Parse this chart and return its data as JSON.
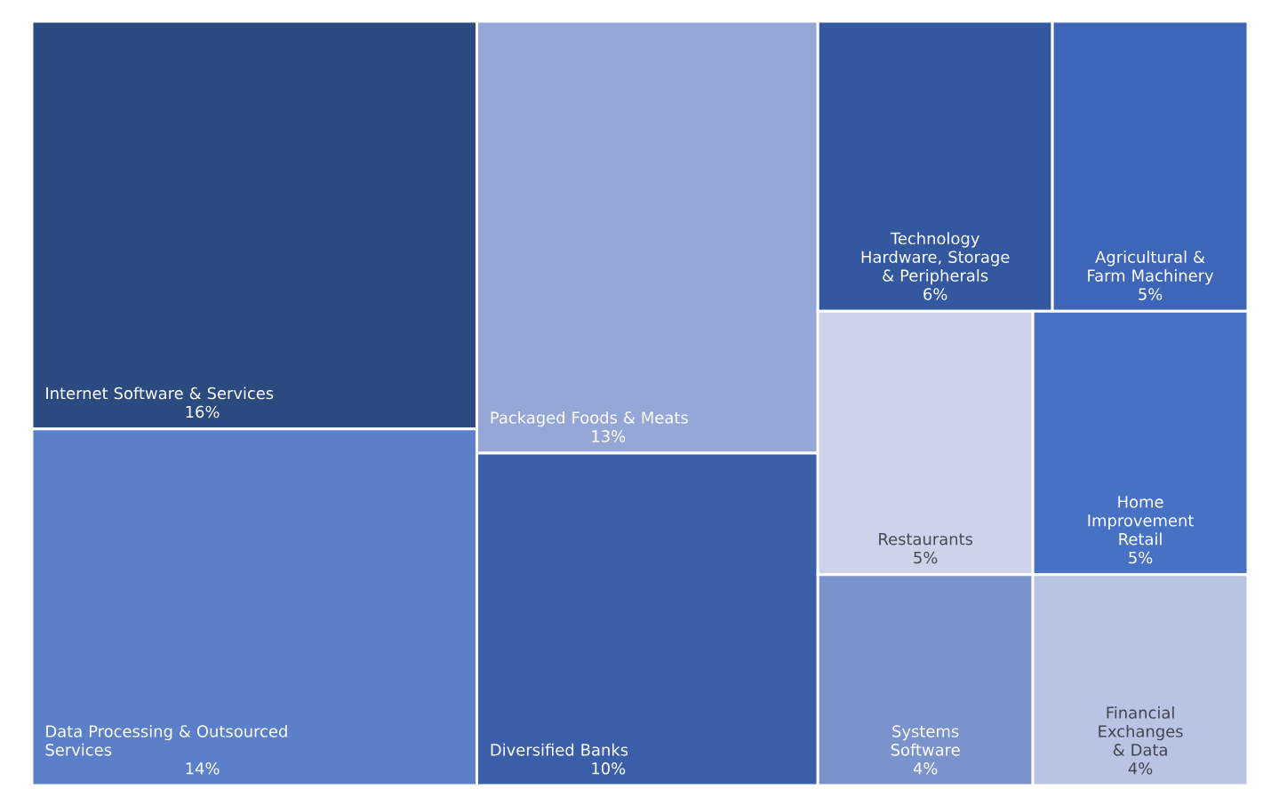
{
  "chart_data": {
    "type": "other",
    "categories": [
      "Internet Software & Services",
      "Data Processing & Outsourced Services",
      "Packaged Foods & Meats",
      "Diversified Banks",
      "Technology Hardware, Storage & Peripherals",
      "Agricultural & Farm Machinery",
      "Restaurants",
      "Home Improvement Retail",
      "Systems Software",
      "Financial Exchanges & Data"
    ],
    "values": [
      16,
      14,
      13,
      10,
      6,
      5,
      5,
      5,
      4,
      4
    ],
    "value_labels": [
      "16%",
      "14%",
      "13%",
      "10%",
      "6%",
      "5%",
      "5%",
      "5%",
      "4%",
      "4%"
    ],
    "colors": [
      "#2b4a80",
      "#5b7fc8",
      "#94a7d6",
      "#3a5fa8",
      "#3358a0",
      "#3d66b8",
      "#ccd3ea",
      "#4772c4",
      "#7b93cc",
      "#b9c4e4"
    ]
  }
}
